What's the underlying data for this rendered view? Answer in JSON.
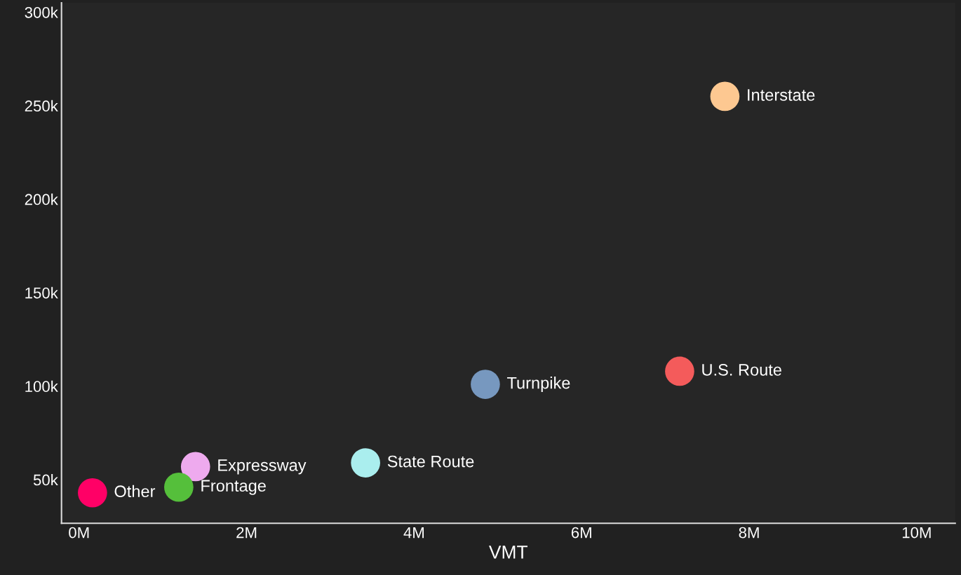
{
  "chart_data": {
    "type": "scatter",
    "xlabel": "VMT",
    "xlim": [
      -0.21,
      10.46
    ],
    "ylim": [
      26.7,
      305
    ],
    "xticks": [
      {
        "value": 0,
        "label": "0M"
      },
      {
        "value": 2,
        "label": "2M"
      },
      {
        "value": 4,
        "label": "4M"
      },
      {
        "value": 6,
        "label": "6M"
      },
      {
        "value": 8,
        "label": "8M"
      },
      {
        "value": 10,
        "label": "10M"
      }
    ],
    "yticks": [
      {
        "value": 50,
        "label": "50k"
      },
      {
        "value": 100,
        "label": "100k"
      },
      {
        "value": 150,
        "label": "150k"
      },
      {
        "value": 200,
        "label": "200k"
      },
      {
        "value": 250,
        "label": "250k"
      },
      {
        "value": 300,
        "label": "300k"
      }
    ],
    "grid": false,
    "legend": false,
    "marker": "circle",
    "series": [
      {
        "name": "Interstate",
        "color": "#fdc891",
        "x": [
          7.71
        ],
        "values": [
          255
        ]
      },
      {
        "name": "U.S. Route",
        "color": "#f45b5b",
        "x": [
          7.17
        ],
        "values": [
          108
        ]
      },
      {
        "name": "Turnpike",
        "color": "#7798bf",
        "x": [
          4.85
        ],
        "values": [
          101
        ]
      },
      {
        "name": "State Route",
        "color": "#aaeeee",
        "x": [
          3.42
        ],
        "values": [
          59
        ]
      },
      {
        "name": "Expressway",
        "color": "#eeaaee",
        "x": [
          1.39
        ],
        "values": [
          57
        ]
      },
      {
        "name": "Frontage",
        "color": "#55bf3b",
        "x": [
          1.19
        ],
        "values": [
          46
        ]
      },
      {
        "name": "Other",
        "color": "#ff0066",
        "x": [
          0.16
        ],
        "values": [
          43
        ]
      }
    ]
  }
}
